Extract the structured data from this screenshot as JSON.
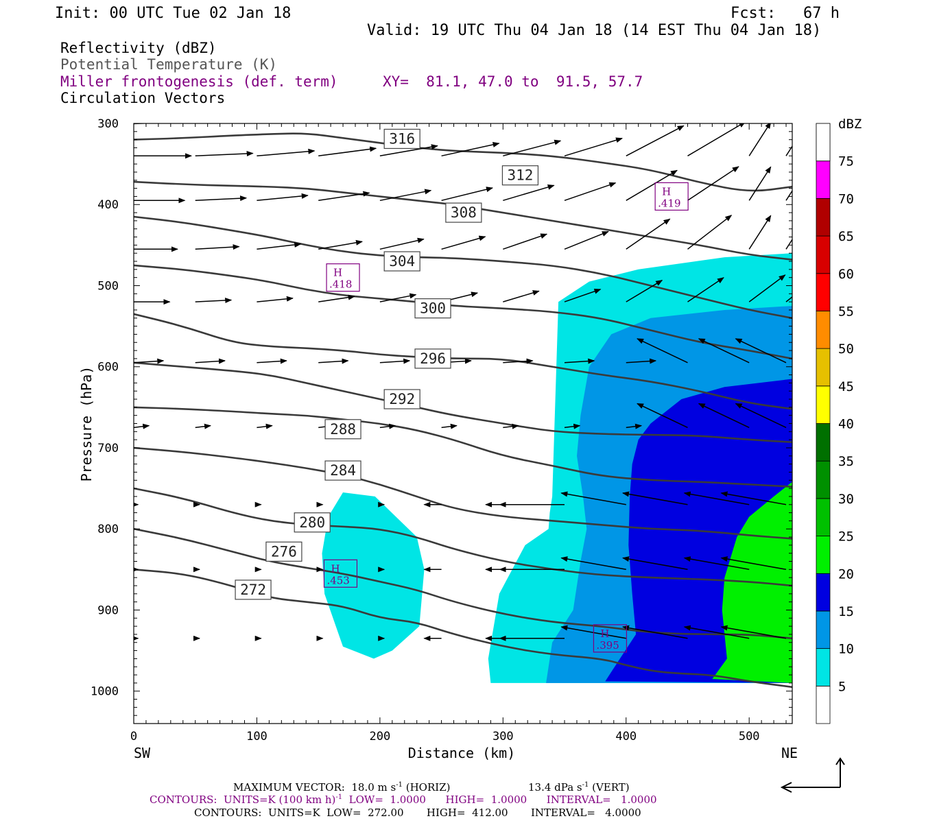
{
  "header": {
    "init": "Init: 00 UTC Tue 02 Jan 18",
    "fcst": "Fcst:   67 h",
    "valid": "Valid: 19 UTC Thu 04 Jan 18 (14 EST Thu 04 Jan 18)",
    "field1": "Reflectivity (dBZ)",
    "field2": "Potential Temperature (K)",
    "field3": "Miller frontogenesis (def. term)",
    "xy": "XY=  81.1, 47.0 to  91.5, 57.7",
    "field4": "Circulation Vectors"
  },
  "colors": {
    "text": "#000000",
    "field2_text": "#555555",
    "purple": "#800080",
    "contour": "#3a3a3a",
    "refl": [
      "#00e5e5",
      "#0096e6",
      "#0000e0",
      "#00f000",
      "#00c000",
      "#009000",
      "#007000",
      "#ffff00",
      "#e6c000",
      "#ff8c00",
      "#ff0000",
      "#d80000",
      "#b00000",
      "#ff00ff",
      "#9966cc"
    ]
  },
  "chart_data": {
    "type": "cross-section",
    "xlabel": "Distance (km)",
    "ylabel": "Pressure (hPa)",
    "xlim": [
      0,
      535
    ],
    "ylim": [
      1040,
      300
    ],
    "x_ticks": [
      "0",
      "100",
      "200",
      "300",
      "400",
      "500"
    ],
    "y_ticks": [
      "300",
      "400",
      "500",
      "600",
      "700",
      "800",
      "900",
      "1000"
    ],
    "x_end_labels": {
      "left": "SW",
      "right": "NE"
    },
    "colorbar": {
      "unit": "dBZ",
      "levels": [
        "5",
        "10",
        "15",
        "20",
        "25",
        "30",
        "35",
        "40",
        "45",
        "50",
        "55",
        "60",
        "65",
        "70",
        "75"
      ]
    },
    "reflectivity_regions": [
      {
        "level": 5,
        "points": [
          [
            340,
            760
          ],
          [
            345,
            520
          ],
          [
            370,
            495
          ],
          [
            410,
            480
          ],
          [
            480,
            465
          ],
          [
            535,
            460
          ],
          [
            535,
            990
          ],
          [
            290,
            990
          ],
          [
            288,
            960
          ],
          [
            297,
            880
          ],
          [
            318,
            820
          ],
          [
            337,
            800
          ],
          [
            338,
            780
          ]
        ]
      },
      {
        "level": 5,
        "points": [
          [
            170,
            755
          ],
          [
            196,
            760
          ],
          [
            230,
            810
          ],
          [
            236,
            850
          ],
          [
            232,
            920
          ],
          [
            210,
            950
          ],
          [
            195,
            960
          ],
          [
            170,
            945
          ],
          [
            155,
            880
          ],
          [
            153,
            830
          ],
          [
            158,
            785
          ]
        ]
      },
      {
        "level": 10,
        "points": [
          [
            363,
            660
          ],
          [
            370,
            600
          ],
          [
            388,
            560
          ],
          [
            420,
            540
          ],
          [
            480,
            530
          ],
          [
            535,
            525
          ],
          [
            535,
            990
          ],
          [
            335,
            990
          ],
          [
            340,
            940
          ],
          [
            357,
            900
          ],
          [
            363,
            840
          ],
          [
            368,
            800
          ],
          [
            365,
            760
          ],
          [
            360,
            710
          ]
        ]
      },
      {
        "level": 15,
        "points": [
          [
            405,
            720
          ],
          [
            410,
            690
          ],
          [
            420,
            670
          ],
          [
            445,
            640
          ],
          [
            480,
            625
          ],
          [
            535,
            615
          ],
          [
            535,
            990
          ],
          [
            383,
            988
          ],
          [
            395,
            960
          ],
          [
            408,
            930
          ],
          [
            405,
            880
          ],
          [
            402,
            820
          ],
          [
            403,
            760
          ]
        ]
      },
      {
        "level": 20,
        "points": [
          [
            535,
            742
          ],
          [
            520,
            760
          ],
          [
            500,
            785
          ],
          [
            490,
            810
          ],
          [
            480,
            860
          ],
          [
            478,
            900
          ],
          [
            482,
            960
          ],
          [
            470,
            985
          ],
          [
            535,
            990
          ]
        ]
      }
    ],
    "theta_isentropes": [
      {
        "label": "272",
        "x": [
          0,
          40,
          80,
          110,
          140,
          170,
          200,
          230,
          260,
          300,
          340,
          380,
          400,
          420,
          440,
          470,
          500,
          535
        ],
        "p": [
          850,
          855,
          870,
          885,
          890,
          895,
          910,
          915,
          930,
          945,
          955,
          960,
          968,
          975,
          978,
          980,
          988,
          995
        ],
        "label_at": [
          97,
          875
        ]
      },
      {
        "label": "276",
        "x": [
          0,
          40,
          80,
          110,
          140,
          170,
          200,
          230,
          260,
          300,
          340,
          380,
          420,
          460,
          500,
          535
        ],
        "p": [
          800,
          812,
          828,
          840,
          848,
          855,
          865,
          875,
          890,
          905,
          915,
          920,
          928,
          930,
          930,
          935
        ],
        "label_at": [
          122,
          828
        ]
      },
      {
        "label": "280",
        "x": [
          0,
          40,
          80,
          110,
          140,
          170,
          200,
          230,
          260,
          300,
          340,
          380,
          420,
          460,
          500,
          535
        ],
        "p": [
          750,
          762,
          780,
          790,
          795,
          797,
          800,
          810,
          825,
          840,
          850,
          857,
          860,
          862,
          865,
          870
        ],
        "label_at": [
          145,
          792
        ]
      },
      {
        "label": "284",
        "x": [
          0,
          40,
          80,
          110,
          140,
          170,
          200,
          230,
          260,
          300,
          340,
          380,
          420,
          460,
          500,
          535
        ],
        "p": [
          700,
          705,
          712,
          718,
          725,
          733,
          745,
          760,
          775,
          785,
          790,
          795,
          800,
          802,
          808,
          812
        ],
        "label_at": [
          170,
          728
        ]
      },
      {
        "label": "288",
        "x": [
          0,
          40,
          80,
          110,
          140,
          170,
          200,
          230,
          260,
          300,
          340,
          380,
          420,
          460,
          500,
          535
        ],
        "p": [
          650,
          652,
          655,
          658,
          660,
          665,
          670,
          678,
          690,
          710,
          722,
          735,
          740,
          742,
          745,
          748
        ],
        "label_at": [
          170,
          677
        ]
      },
      {
        "label": "292",
        "x": [
          0,
          40,
          80,
          110,
          140,
          170,
          200,
          230,
          260,
          300,
          340,
          380,
          420,
          460,
          500,
          535
        ],
        "p": [
          595,
          600,
          605,
          610,
          620,
          630,
          640,
          650,
          660,
          670,
          680,
          683,
          684,
          685,
          690,
          693
        ],
        "label_at": [
          218,
          640
        ]
      },
      {
        "label": "296",
        "x": [
          0,
          40,
          80,
          110,
          140,
          170,
          200,
          230,
          260,
          300,
          340,
          380,
          420,
          460,
          500,
          535
        ],
        "p": [
          535,
          550,
          570,
          575,
          577,
          580,
          585,
          588,
          590,
          590,
          600,
          610,
          618,
          630,
          645,
          652
        ],
        "label_at": [
          243,
          590
        ]
      },
      {
        "label": "300",
        "x": [
          0,
          40,
          80,
          110,
          140,
          170,
          200,
          230,
          260,
          300,
          340,
          380,
          420,
          460,
          500,
          535
        ],
        "p": [
          475,
          480,
          488,
          495,
          505,
          512,
          516,
          520,
          525,
          528,
          532,
          540,
          555,
          570,
          580,
          590
        ],
        "label_at": [
          243,
          528
        ]
      },
      {
        "label": "304",
        "x": [
          0,
          40,
          80,
          110,
          140,
          170,
          200,
          230,
          260,
          300,
          340,
          380,
          420,
          460,
          500,
          535
        ],
        "p": [
          415,
          422,
          432,
          440,
          450,
          458,
          463,
          465,
          466,
          470,
          475,
          485,
          500,
          515,
          530,
          540
        ],
        "label_at": [
          218,
          470
        ]
      },
      {
        "label": "308",
        "x": [
          0,
          40,
          80,
          110,
          140,
          170,
          200,
          230,
          260,
          300,
          340,
          380,
          420,
          460,
          500,
          535
        ],
        "p": [
          372,
          375,
          377,
          378,
          380,
          385,
          390,
          395,
          400,
          410,
          420,
          430,
          440,
          450,
          462,
          468
        ],
        "label_at": [
          268,
          410
        ]
      },
      {
        "label": "312",
        "x": [
          0,
          40,
          80,
          110,
          140,
          170,
          200,
          230,
          260,
          300,
          340,
          380,
          420,
          460,
          500,
          535
        ],
        "p": [
          320,
          318,
          315,
          313,
          312,
          318,
          324,
          330,
          334,
          336,
          340,
          348,
          357,
          373,
          385,
          378
        ],
        "label_at": [
          314,
          364
        ]
      },
      {
        "label": "316",
        "x": [
          0,
          40,
          80,
          110,
          140,
          170,
          200,
          230,
          260,
          300,
          340,
          380,
          420,
          460,
          500,
          535
        ],
        "p": [
          300,
          297,
          294,
          292,
          290,
          290,
          290,
          290,
          290,
          290,
          290,
          290,
          290,
          290,
          290,
          292
        ],
        "label_at": [
          218,
          319
        ]
      }
    ],
    "frontogenesis_highs": [
      {
        "label": "H",
        "value": ".418",
        "x": 170,
        "p": 490
      },
      {
        "label": "H",
        "value": ".419",
        "x": 437,
        "p": 390
      },
      {
        "label": "H",
        "value": ".453",
        "x": 168,
        "p": 855
      },
      {
        "label": "H",
        "value": ".395",
        "x": 387,
        "p": 935
      }
    ],
    "vector_summary": {
      "max_vector": "MAXIMUM VECTOR:  18.0 m s",
      "max_vector_exp": "-1",
      "horiz": " (HORIZ)",
      "vert_value": "13.4 dPa s",
      "vert_exp": "-1",
      "vert": " (VERT)"
    },
    "contour_info_frontogenesis": {
      "prefix": "CONTOURS:  UNITS=K (100 km h)",
      "exp": "-1",
      "rest": "  LOW=  1.0000      HIGH=  1.0000      INTERVAL=   1.0000"
    },
    "contour_info_theta": "CONTOURS:  UNITS=K  LOW=  272.00       HIGH=  412.00       INTERVAL=   4.0000"
  }
}
